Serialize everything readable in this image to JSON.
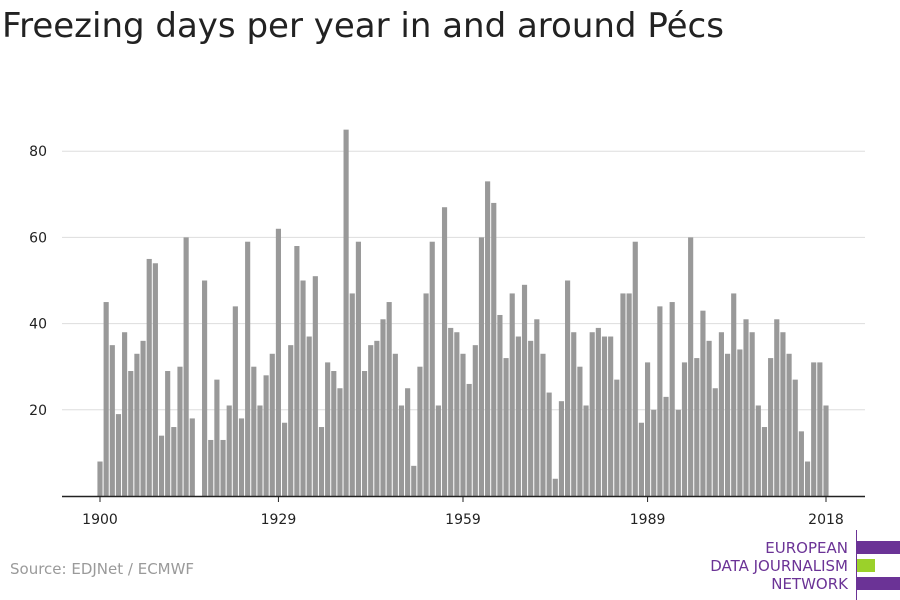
{
  "title": "Freezing days per year in and around Pécs",
  "source": "Source: EDJNet / ECMWF",
  "logo": {
    "lines": [
      "EUROPEAN",
      "DATA JOURNALISM",
      "NETWORK"
    ],
    "colors": {
      "purple": "#6b3396",
      "green": "#9bd12a"
    }
  },
  "colors": {
    "bar": "#999999",
    "grid": "#dddddd",
    "axis": "#222222",
    "label": "#222222"
  },
  "chart_data": {
    "type": "bar",
    "title": "Freezing days per year in and around Pécs",
    "xlabel": "",
    "ylabel": "",
    "x_ticks": [
      1900,
      1929,
      1959,
      1989,
      2018
    ],
    "y_ticks": [
      20,
      40,
      60,
      80
    ],
    "ylim": [
      0,
      90
    ],
    "xlim": [
      1900,
      2018
    ],
    "grid": true,
    "series": [
      {
        "name": "Freezing days",
        "x": [
          1900,
          1901,
          1902,
          1903,
          1904,
          1905,
          1906,
          1907,
          1908,
          1909,
          1910,
          1911,
          1912,
          1913,
          1914,
          1915,
          1916,
          1917,
          1918,
          1919,
          1920,
          1921,
          1922,
          1923,
          1924,
          1925,
          1926,
          1927,
          1928,
          1929,
          1930,
          1931,
          1932,
          1933,
          1934,
          1935,
          1936,
          1937,
          1938,
          1939,
          1940,
          1941,
          1942,
          1943,
          1944,
          1945,
          1946,
          1947,
          1948,
          1949,
          1950,
          1951,
          1952,
          1953,
          1954,
          1955,
          1956,
          1957,
          1958,
          1959,
          1960,
          1961,
          1962,
          1963,
          1964,
          1965,
          1966,
          1967,
          1968,
          1969,
          1970,
          1971,
          1972,
          1973,
          1974,
          1975,
          1976,
          1977,
          1978,
          1979,
          1980,
          1981,
          1982,
          1983,
          1984,
          1985,
          1986,
          1987,
          1988,
          1989,
          1990,
          1991,
          1992,
          1993,
          1994,
          1995,
          1996,
          1997,
          1998,
          1999,
          2000,
          2001,
          2002,
          2003,
          2004,
          2005,
          2006,
          2007,
          2008,
          2009,
          2010,
          2011,
          2012,
          2013,
          2014,
          2015,
          2016,
          2017,
          2018
        ],
        "values": [
          8,
          45,
          35,
          19,
          38,
          29,
          33,
          36,
          55,
          54,
          14,
          29,
          16,
          30,
          60,
          18,
          0,
          50,
          13,
          27,
          13,
          21,
          44,
          18,
          59,
          30,
          21,
          28,
          33,
          62,
          17,
          35,
          58,
          50,
          37,
          51,
          16,
          31,
          29,
          25,
          85,
          47,
          59,
          29,
          35,
          36,
          41,
          45,
          33,
          21,
          25,
          7,
          30,
          47,
          59,
          21,
          67,
          39,
          38,
          33,
          26,
          35,
          60,
          73,
          68,
          42,
          32,
          47,
          37,
          49,
          36,
          41,
          33,
          24,
          4,
          22,
          50,
          38,
          30,
          21,
          38,
          39,
          37,
          37,
          27,
          47,
          47,
          59,
          17,
          31,
          20,
          44,
          23,
          45,
          20,
          31,
          60,
          32,
          43,
          36,
          25,
          38,
          33,
          47,
          34,
          41,
          38,
          21,
          16,
          32,
          41,
          38,
          33,
          27,
          15,
          8,
          31,
          31,
          21
        ]
      }
    ]
  }
}
